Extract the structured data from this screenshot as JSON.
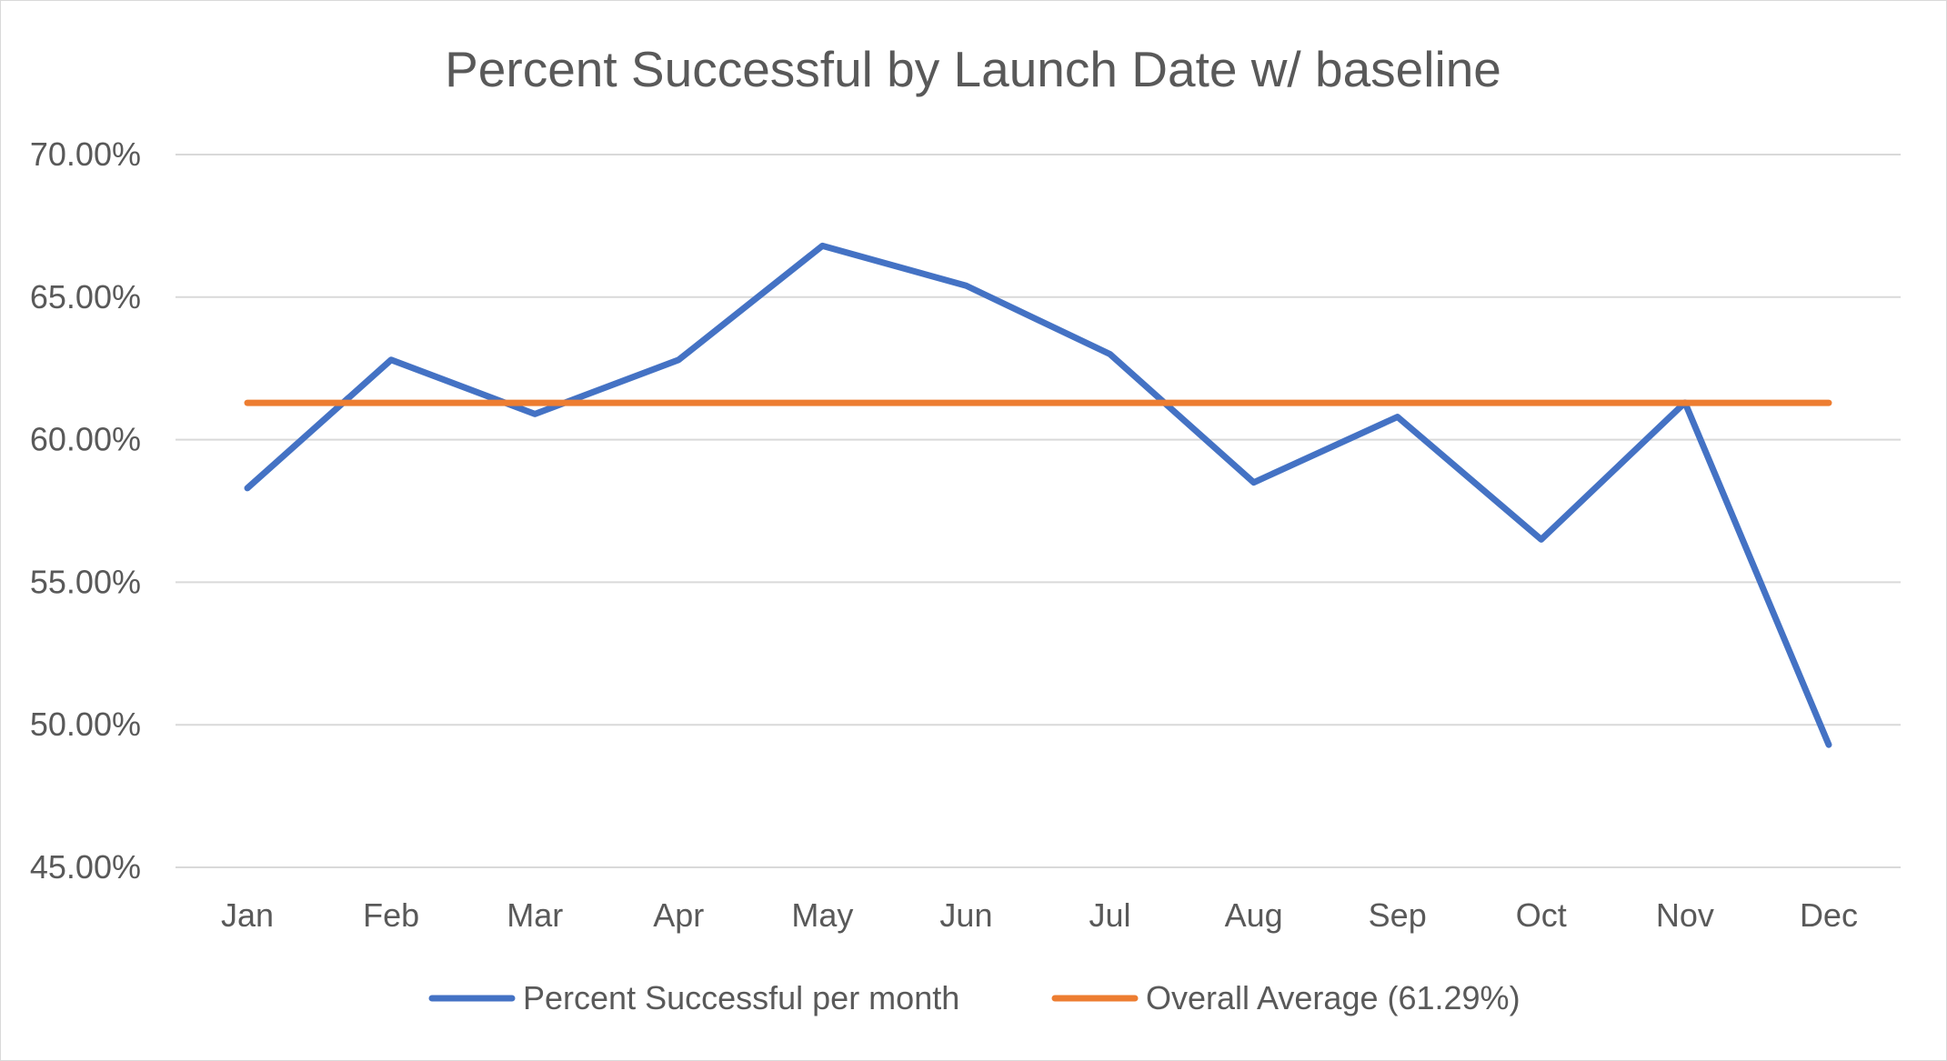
{
  "chart_data": {
    "type": "line",
    "title": "Percent Successful by Launch Date w/ baseline",
    "xlabel": "",
    "ylabel": "",
    "categories": [
      "Jan",
      "Feb",
      "Mar",
      "Apr",
      "May",
      "Jun",
      "Jul",
      "Aug",
      "Sep",
      "Oct",
      "Nov",
      "Dec"
    ],
    "ylim": [
      0.45,
      0.7
    ],
    "yticks": [
      0.7,
      0.65,
      0.6,
      0.55,
      0.5,
      0.45
    ],
    "ytick_labels": [
      "70.00%",
      "65.00%",
      "60.00%",
      "55.00%",
      "50.00%",
      "45.00%"
    ],
    "grid": true,
    "legend_position": "bottom",
    "series": [
      {
        "name": "Percent Successful per month",
        "color": "#4472C4",
        "values": [
          0.583,
          0.628,
          0.609,
          0.628,
          0.668,
          0.654,
          0.63,
          0.585,
          0.608,
          0.565,
          0.613,
          0.493
        ]
      },
      {
        "name": "Overall Average (61.29%)",
        "color": "#ED7D31",
        "values": [
          0.6129,
          0.6129,
          0.6129,
          0.6129,
          0.6129,
          0.6129,
          0.6129,
          0.6129,
          0.6129,
          0.6129,
          0.6129,
          0.6129
        ]
      }
    ]
  }
}
